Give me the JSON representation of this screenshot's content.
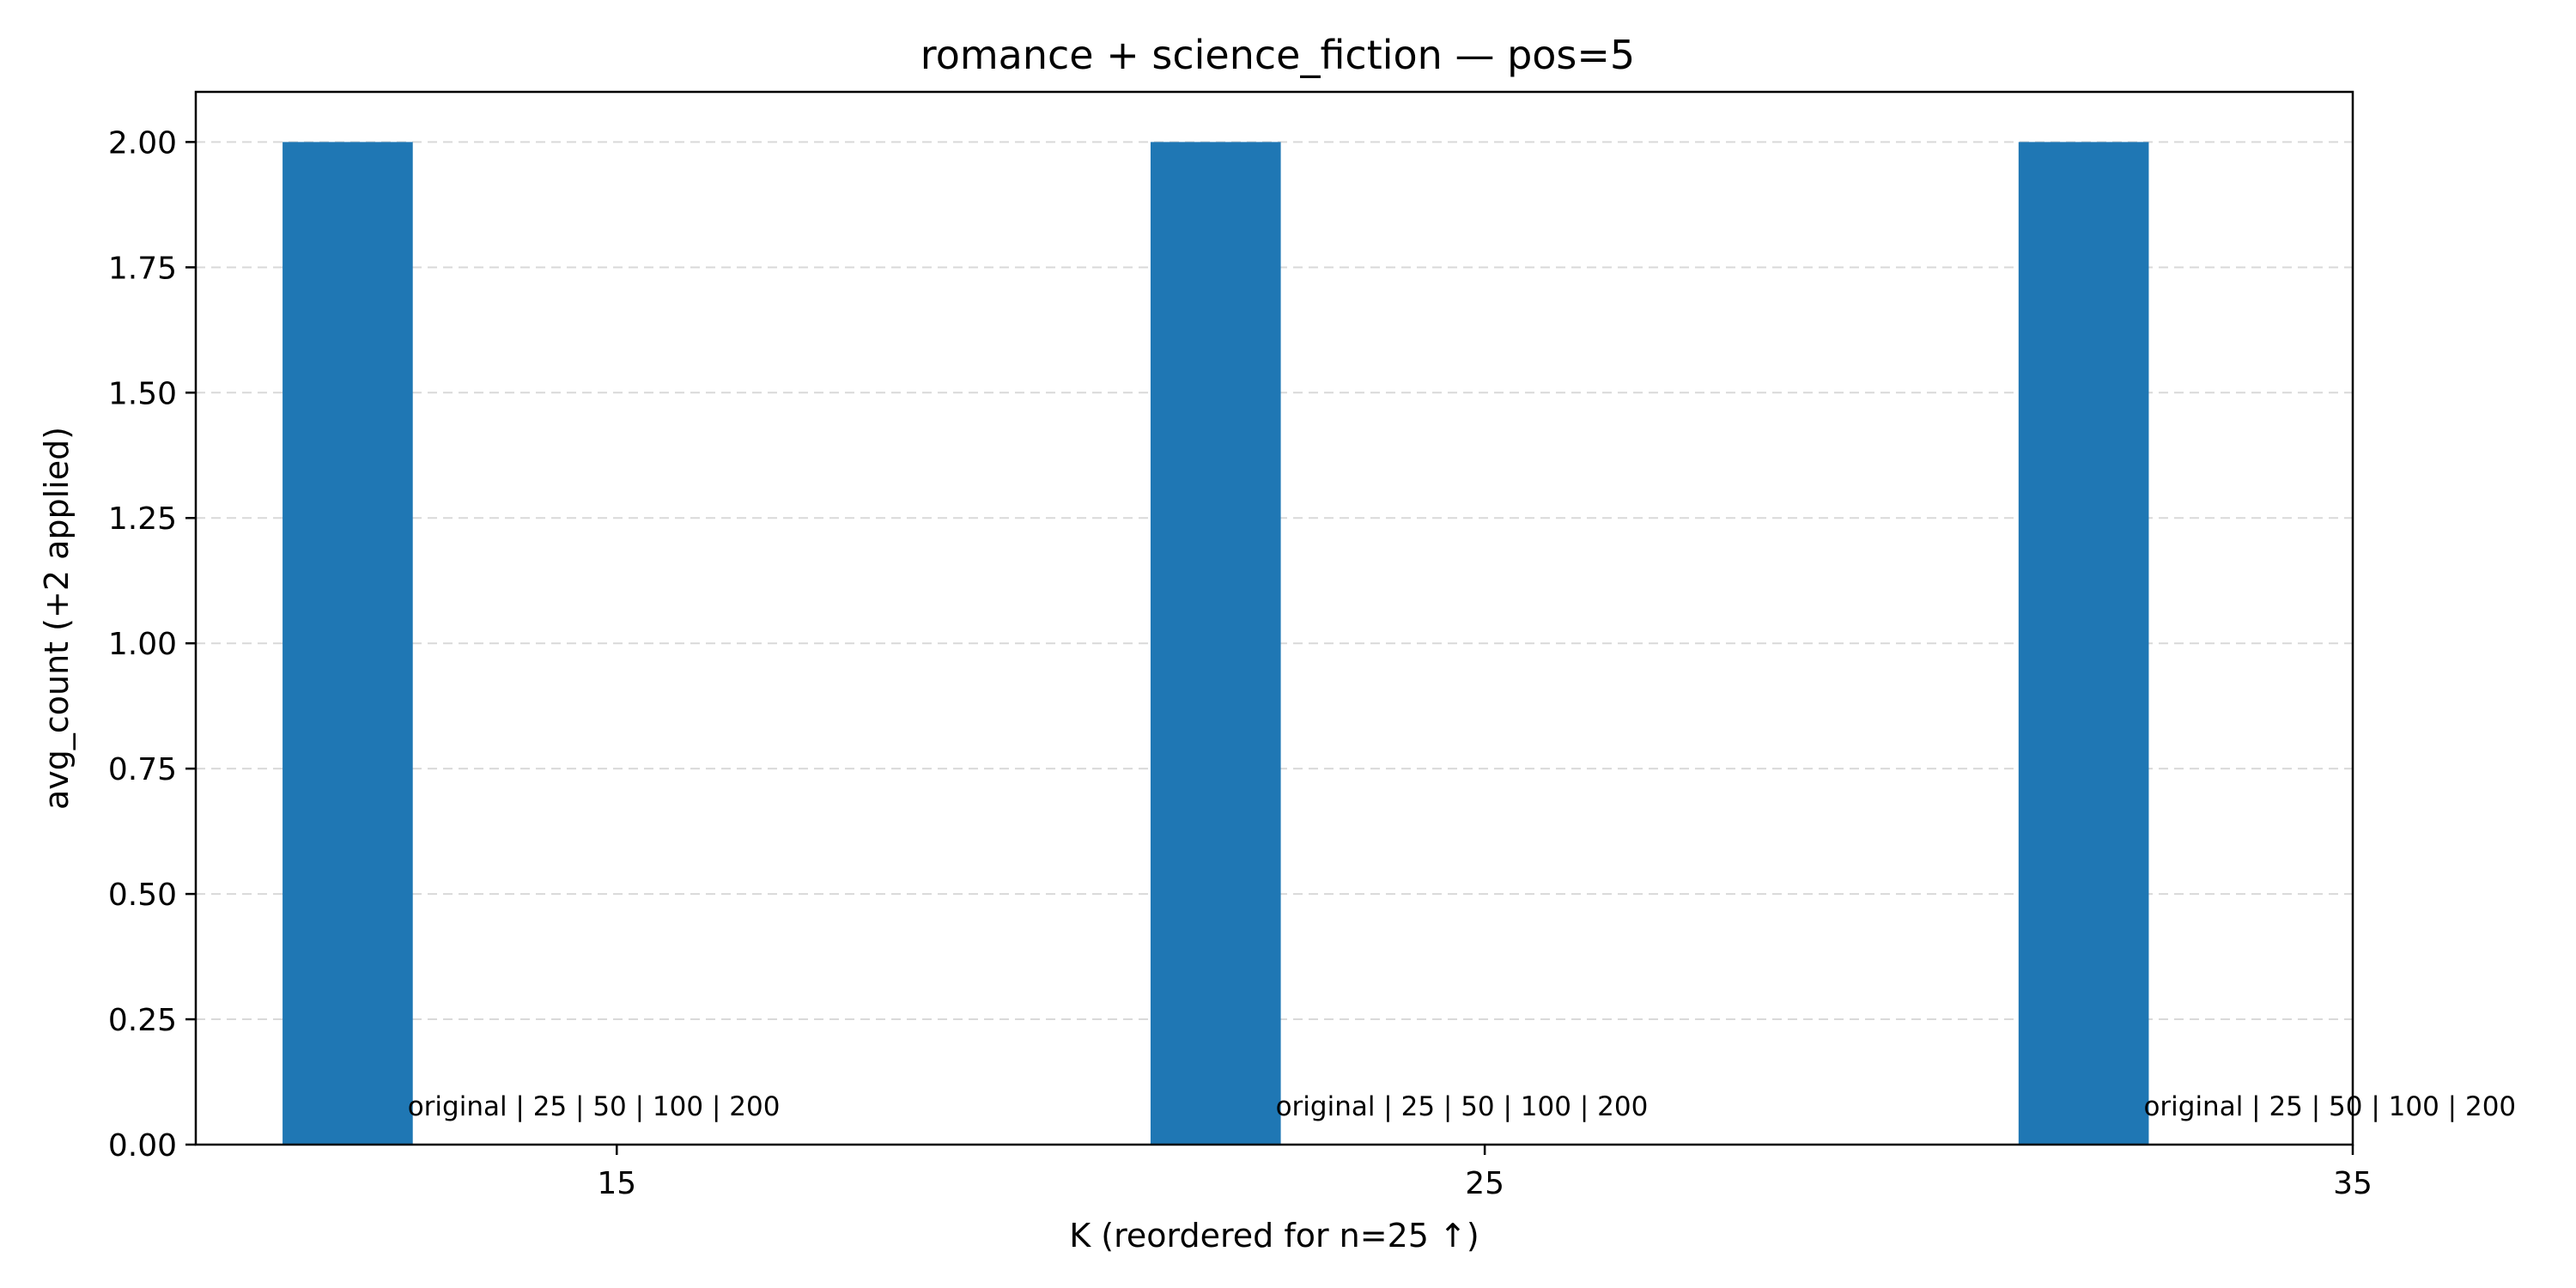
{
  "chart_data": {
    "type": "bar",
    "title": "romance + science_fiction — pos=5",
    "xlabel": "K (reordered for n=25 ↑)",
    "ylabel": "avg_count (+2 applied)",
    "x_ticks": [
      "15",
      "25",
      "35"
    ],
    "y_ticks": [
      "0.00",
      "0.25",
      "0.50",
      "0.75",
      "1.00",
      "1.25",
      "1.50",
      "1.75",
      "2.00"
    ],
    "xlim": [
      10.15,
      35
    ],
    "ylim": [
      0,
      2.1
    ],
    "grid": "y",
    "series": [
      {
        "values": [
          {
            "x": 11.9,
            "y": 2.0,
            "label": "original | 25 | 50 | 100 | 200"
          },
          {
            "x": 21.9,
            "y": 2.0,
            "label": "original | 25 | 50 | 100 | 200"
          },
          {
            "x": 31.9,
            "y": 2.0,
            "label": "original | 25 | 50 | 100 | 200"
          }
        ],
        "bar_width": 1.5,
        "color": "#1f77b4"
      }
    ]
  }
}
